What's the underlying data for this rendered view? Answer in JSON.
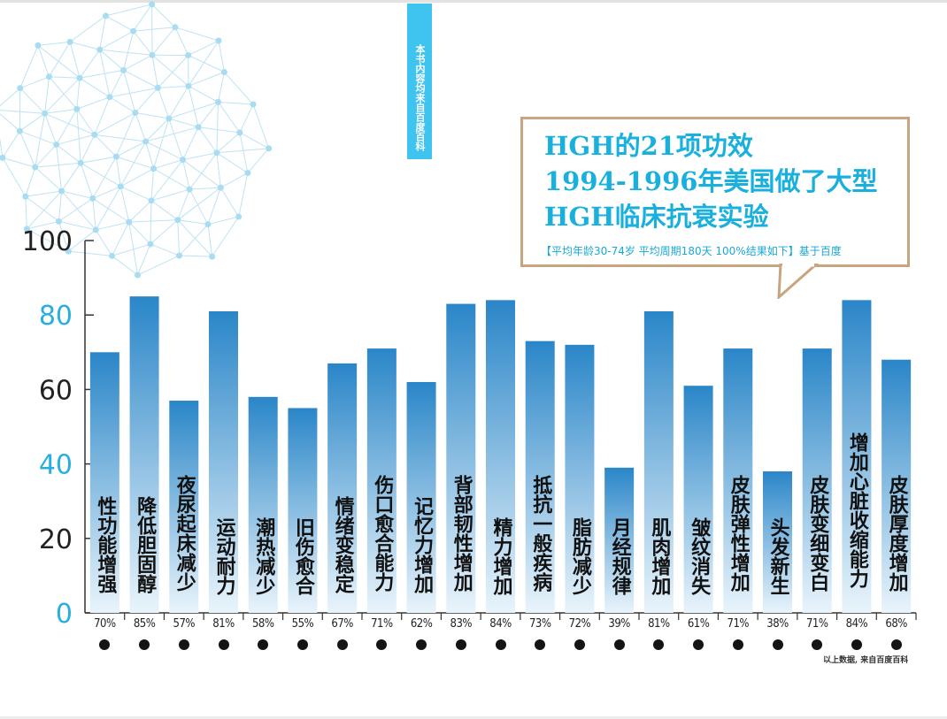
{
  "side_tab": "本书内容均来自百度百科",
  "callout": {
    "lines": [
      "HGH的21项功效",
      "1994-1996年美国做了大型",
      "HGH临床抗衰实验"
    ],
    "subtitle": "【平均年龄30-74岁 平均周期180天 100%结果如下】基于百度"
  },
  "source_note": "以上数据, 来自百度百科",
  "colors": {
    "bar_top": "#2a86c8",
    "bar_bottom": "#e9f4fb",
    "callout_border": "#c8a57e",
    "title_blue": "#1ab0dd",
    "tick_blue": "#29aee0",
    "tab_blue": "#3fc3ef"
  },
  "chart_data": {
    "type": "bar",
    "title": "",
    "xlabel": "",
    "ylabel": "",
    "ylim": [
      0,
      100
    ],
    "yticks": [
      "0",
      "20",
      "40",
      "60",
      "80",
      "100"
    ],
    "grid": false,
    "categories": [
      "性功能增强",
      "降低胆固醇",
      "夜尿起床减少",
      "运动耐力",
      "潮热减少",
      "旧伤愈合",
      "情绪变稳定",
      "伤口愈合能力",
      "记忆力增加",
      "背部韧性增加",
      "精力增加",
      "抵抗一般疾病",
      "脂肪减少",
      "月经规律",
      "肌肉增加",
      "皱纹消失",
      "皮肤弹性增加",
      "头发新生",
      "皮肤变细变白",
      "增加心脏收缩能力",
      "皮肤厚度增加"
    ],
    "values": [
      70,
      85,
      57,
      81,
      58,
      55,
      67,
      71,
      62,
      83,
      84,
      73,
      72,
      39,
      81,
      61,
      71,
      38,
      71,
      84,
      68
    ],
    "value_labels": [
      "70%",
      "85%",
      "57%",
      "81%",
      "58%",
      "55%",
      "67%",
      "71%",
      "62%",
      "83%",
      "84%",
      "73%",
      "72%",
      "39%",
      "81%",
      "61%",
      "71%",
      "38%",
      "71%",
      "84%",
      "68%"
    ]
  }
}
